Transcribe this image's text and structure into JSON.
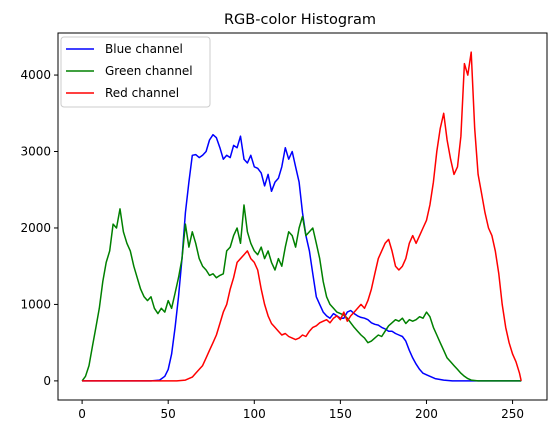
{
  "chart_data": {
    "type": "line",
    "title": "RGB-color Histogram",
    "xlabel": "",
    "ylabel": "",
    "xlim": [
      -14,
      270
    ],
    "ylim": [
      -250,
      4550
    ],
    "xticks": [
      0,
      50,
      100,
      150,
      200,
      250
    ],
    "yticks": [
      0,
      1000,
      2000,
      3000,
      4000
    ],
    "grid": false,
    "legend_position": "upper-left",
    "series": [
      {
        "name": "Blue channel",
        "color": "#0000ff",
        "points": [
          [
            0,
            0
          ],
          [
            10,
            0
          ],
          [
            20,
            0
          ],
          [
            30,
            0
          ],
          [
            40,
            0
          ],
          [
            45,
            10
          ],
          [
            48,
            60
          ],
          [
            50,
            150
          ],
          [
            52,
            350
          ],
          [
            54,
            700
          ],
          [
            56,
            1100
          ],
          [
            58,
            1600
          ],
          [
            60,
            2200
          ],
          [
            62,
            2600
          ],
          [
            64,
            2950
          ],
          [
            66,
            2960
          ],
          [
            68,
            2920
          ],
          [
            70,
            2950
          ],
          [
            72,
            3000
          ],
          [
            74,
            3150
          ],
          [
            76,
            3220
          ],
          [
            78,
            3180
          ],
          [
            80,
            3050
          ],
          [
            82,
            2900
          ],
          [
            84,
            2950
          ],
          [
            86,
            2920
          ],
          [
            88,
            3080
          ],
          [
            90,
            3050
          ],
          [
            92,
            3200
          ],
          [
            94,
            2900
          ],
          [
            96,
            2850
          ],
          [
            98,
            2950
          ],
          [
            100,
            2800
          ],
          [
            102,
            2780
          ],
          [
            104,
            2720
          ],
          [
            106,
            2550
          ],
          [
            108,
            2700
          ],
          [
            110,
            2480
          ],
          [
            112,
            2600
          ],
          [
            114,
            2650
          ],
          [
            116,
            2800
          ],
          [
            118,
            3050
          ],
          [
            120,
            2900
          ],
          [
            122,
            3000
          ],
          [
            124,
            2800
          ],
          [
            126,
            2600
          ],
          [
            128,
            2200
          ],
          [
            130,
            1900
          ],
          [
            132,
            1700
          ],
          [
            134,
            1400
          ],
          [
            136,
            1100
          ],
          [
            138,
            1000
          ],
          [
            140,
            900
          ],
          [
            142,
            850
          ],
          [
            144,
            820
          ],
          [
            146,
            880
          ],
          [
            148,
            850
          ],
          [
            150,
            820
          ],
          [
            152,
            820
          ],
          [
            154,
            900
          ],
          [
            156,
            920
          ],
          [
            158,
            880
          ],
          [
            160,
            850
          ],
          [
            162,
            830
          ],
          [
            164,
            820
          ],
          [
            166,
            800
          ],
          [
            168,
            760
          ],
          [
            170,
            740
          ],
          [
            172,
            730
          ],
          [
            174,
            700
          ],
          [
            176,
            680
          ],
          [
            178,
            650
          ],
          [
            180,
            650
          ],
          [
            182,
            620
          ],
          [
            184,
            600
          ],
          [
            186,
            580
          ],
          [
            188,
            520
          ],
          [
            190,
            400
          ],
          [
            192,
            300
          ],
          [
            194,
            220
          ],
          [
            196,
            150
          ],
          [
            198,
            100
          ],
          [
            200,
            80
          ],
          [
            205,
            30
          ],
          [
            210,
            10
          ],
          [
            215,
            0
          ],
          [
            225,
            0
          ],
          [
            240,
            0
          ],
          [
            255,
            0
          ]
        ]
      },
      {
        "name": "Green channel",
        "color": "#008000",
        "points": [
          [
            0,
            0
          ],
          [
            2,
            60
          ],
          [
            4,
            200
          ],
          [
            6,
            450
          ],
          [
            8,
            700
          ],
          [
            10,
            950
          ],
          [
            12,
            1300
          ],
          [
            14,
            1550
          ],
          [
            16,
            1700
          ],
          [
            18,
            2050
          ],
          [
            20,
            2000
          ],
          [
            22,
            2250
          ],
          [
            24,
            1950
          ],
          [
            26,
            1800
          ],
          [
            28,
            1700
          ],
          [
            30,
            1500
          ],
          [
            32,
            1350
          ],
          [
            34,
            1200
          ],
          [
            36,
            1100
          ],
          [
            38,
            1050
          ],
          [
            40,
            1100
          ],
          [
            42,
            950
          ],
          [
            44,
            880
          ],
          [
            46,
            950
          ],
          [
            48,
            900
          ],
          [
            50,
            1050
          ],
          [
            52,
            950
          ],
          [
            54,
            1150
          ],
          [
            56,
            1350
          ],
          [
            58,
            1600
          ],
          [
            60,
            2050
          ],
          [
            62,
            1750
          ],
          [
            64,
            1950
          ],
          [
            66,
            1800
          ],
          [
            68,
            1600
          ],
          [
            70,
            1500
          ],
          [
            72,
            1450
          ],
          [
            74,
            1380
          ],
          [
            76,
            1400
          ],
          [
            78,
            1350
          ],
          [
            80,
            1380
          ],
          [
            82,
            1400
          ],
          [
            84,
            1700
          ],
          [
            86,
            1750
          ],
          [
            88,
            1900
          ],
          [
            90,
            2000
          ],
          [
            92,
            1800
          ],
          [
            94,
            2300
          ],
          [
            96,
            1950
          ],
          [
            98,
            1800
          ],
          [
            100,
            1700
          ],
          [
            102,
            1650
          ],
          [
            104,
            1750
          ],
          [
            106,
            1600
          ],
          [
            108,
            1700
          ],
          [
            110,
            1550
          ],
          [
            112,
            1450
          ],
          [
            114,
            1600
          ],
          [
            116,
            1500
          ],
          [
            118,
            1750
          ],
          [
            120,
            1950
          ],
          [
            122,
            1900
          ],
          [
            124,
            1750
          ],
          [
            126,
            2000
          ],
          [
            128,
            2150
          ],
          [
            130,
            1900
          ],
          [
            132,
            1950
          ],
          [
            134,
            2000
          ],
          [
            136,
            1800
          ],
          [
            138,
            1600
          ],
          [
            140,
            1300
          ],
          [
            142,
            1100
          ],
          [
            144,
            1000
          ],
          [
            146,
            950
          ],
          [
            148,
            900
          ],
          [
            150,
            880
          ],
          [
            152,
            860
          ],
          [
            154,
            820
          ],
          [
            156,
            760
          ],
          [
            158,
            700
          ],
          [
            160,
            650
          ],
          [
            162,
            600
          ],
          [
            164,
            560
          ],
          [
            166,
            500
          ],
          [
            168,
            520
          ],
          [
            170,
            560
          ],
          [
            172,
            600
          ],
          [
            174,
            580
          ],
          [
            176,
            650
          ],
          [
            178,
            720
          ],
          [
            180,
            760
          ],
          [
            182,
            800
          ],
          [
            184,
            780
          ],
          [
            186,
            820
          ],
          [
            188,
            750
          ],
          [
            190,
            800
          ],
          [
            192,
            780
          ],
          [
            194,
            800
          ],
          [
            196,
            840
          ],
          [
            198,
            820
          ],
          [
            200,
            900
          ],
          [
            202,
            840
          ],
          [
            204,
            700
          ],
          [
            206,
            600
          ],
          [
            208,
            500
          ],
          [
            210,
            400
          ],
          [
            212,
            300
          ],
          [
            214,
            250
          ],
          [
            216,
            200
          ],
          [
            218,
            150
          ],
          [
            220,
            100
          ],
          [
            222,
            60
          ],
          [
            224,
            30
          ],
          [
            226,
            10
          ],
          [
            230,
            0
          ],
          [
            240,
            0
          ],
          [
            255,
            0
          ]
        ]
      },
      {
        "name": "Red channel",
        "color": "#ff0000",
        "points": [
          [
            0,
            0
          ],
          [
            20,
            0
          ],
          [
            40,
            0
          ],
          [
            55,
            0
          ],
          [
            60,
            10
          ],
          [
            64,
            50
          ],
          [
            66,
            100
          ],
          [
            68,
            150
          ],
          [
            70,
            200
          ],
          [
            72,
            300
          ],
          [
            74,
            400
          ],
          [
            76,
            500
          ],
          [
            78,
            600
          ],
          [
            80,
            750
          ],
          [
            82,
            900
          ],
          [
            84,
            1000
          ],
          [
            86,
            1200
          ],
          [
            88,
            1350
          ],
          [
            90,
            1550
          ],
          [
            92,
            1600
          ],
          [
            94,
            1650
          ],
          [
            96,
            1700
          ],
          [
            98,
            1600
          ],
          [
            100,
            1550
          ],
          [
            102,
            1450
          ],
          [
            104,
            1200
          ],
          [
            106,
            1000
          ],
          [
            108,
            850
          ],
          [
            110,
            750
          ],
          [
            112,
            700
          ],
          [
            114,
            650
          ],
          [
            116,
            600
          ],
          [
            118,
            620
          ],
          [
            120,
            580
          ],
          [
            122,
            560
          ],
          [
            124,
            540
          ],
          [
            126,
            560
          ],
          [
            128,
            600
          ],
          [
            130,
            580
          ],
          [
            132,
            650
          ],
          [
            134,
            700
          ],
          [
            136,
            720
          ],
          [
            138,
            760
          ],
          [
            140,
            780
          ],
          [
            142,
            800
          ],
          [
            144,
            760
          ],
          [
            146,
            820
          ],
          [
            148,
            850
          ],
          [
            150,
            800
          ],
          [
            152,
            900
          ],
          [
            154,
            780
          ],
          [
            156,
            850
          ],
          [
            158,
            900
          ],
          [
            160,
            950
          ],
          [
            162,
            1000
          ],
          [
            164,
            950
          ],
          [
            166,
            1050
          ],
          [
            168,
            1200
          ],
          [
            170,
            1400
          ],
          [
            172,
            1600
          ],
          [
            174,
            1700
          ],
          [
            176,
            1800
          ],
          [
            178,
            1850
          ],
          [
            180,
            1700
          ],
          [
            182,
            1500
          ],
          [
            184,
            1450
          ],
          [
            186,
            1500
          ],
          [
            188,
            1600
          ],
          [
            190,
            1800
          ],
          [
            192,
            1900
          ],
          [
            194,
            1800
          ],
          [
            196,
            1900
          ],
          [
            198,
            2000
          ],
          [
            200,
            2100
          ],
          [
            202,
            2300
          ],
          [
            204,
            2600
          ],
          [
            206,
            3000
          ],
          [
            208,
            3300
          ],
          [
            210,
            3500
          ],
          [
            212,
            3150
          ],
          [
            214,
            2900
          ],
          [
            216,
            2700
          ],
          [
            218,
            2800
          ],
          [
            220,
            3200
          ],
          [
            222,
            4150
          ],
          [
            224,
            4000
          ],
          [
            226,
            4300
          ],
          [
            228,
            3300
          ],
          [
            230,
            2700
          ],
          [
            232,
            2450
          ],
          [
            234,
            2200
          ],
          [
            236,
            2000
          ],
          [
            238,
            1900
          ],
          [
            240,
            1700
          ],
          [
            242,
            1400
          ],
          [
            244,
            1000
          ],
          [
            246,
            700
          ],
          [
            248,
            500
          ],
          [
            250,
            350
          ],
          [
            252,
            250
          ],
          [
            254,
            100
          ],
          [
            255,
            0
          ]
        ]
      }
    ]
  }
}
